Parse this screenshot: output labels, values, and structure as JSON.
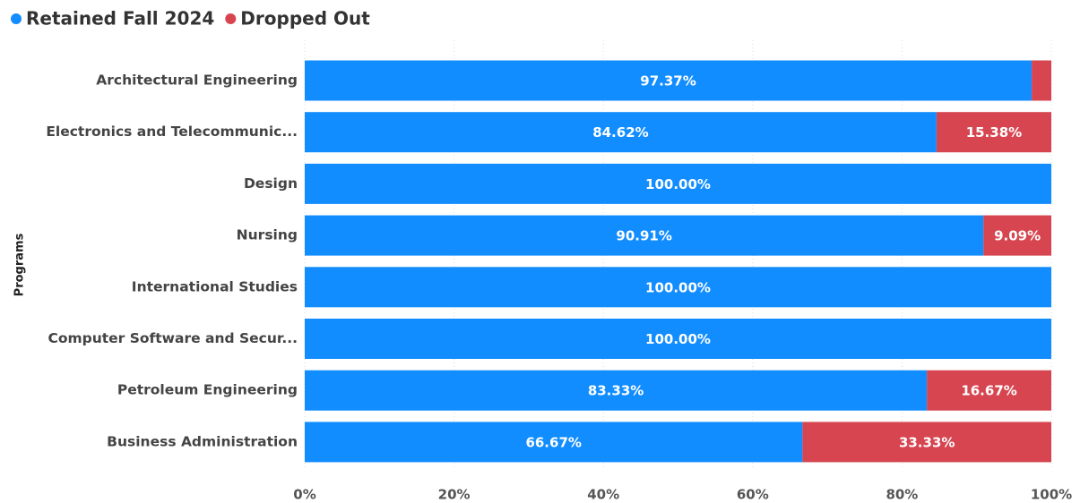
{
  "chart_data": {
    "type": "stacked_bar_horizontal",
    "y_label": "Programs",
    "categories": [
      "Architectural Engineering",
      "Electronics and Telecommunic...",
      "Design",
      "Nursing",
      "International Studies",
      "Computer Software and Secur...",
      "Petroleum Engineering",
      "Business Administration"
    ],
    "series": [
      {
        "name": "Retained Fall 2024",
        "color": "#118dff",
        "values": [
          97.37,
          84.62,
          100,
          90.91,
          100,
          100,
          83.33,
          66.67
        ],
        "value_labels": [
          "97.37%",
          "84.62%",
          "100.00%",
          "90.91%",
          "100.00%",
          "100.00%",
          "83.33%",
          "66.67%"
        ]
      },
      {
        "name": "Dropped Out",
        "color": "#d64550",
        "values": [
          2.63,
          15.38,
          0,
          9.09,
          0,
          0,
          16.67,
          33.33
        ],
        "value_labels": [
          null,
          "15.38%",
          null,
          "9.09%",
          null,
          null,
          "16.67%",
          "33.33%"
        ]
      }
    ],
    "xlim": [
      0,
      100
    ],
    "xticks": [
      {
        "value": 0,
        "label": "0%"
      },
      {
        "value": 20,
        "label": "20%"
      },
      {
        "value": 40,
        "label": "40%"
      },
      {
        "value": 60,
        "label": "60%"
      },
      {
        "value": 80,
        "label": "80%"
      },
      {
        "value": 100,
        "label": "100%"
      }
    ],
    "grid": true,
    "legend": "top-left"
  }
}
